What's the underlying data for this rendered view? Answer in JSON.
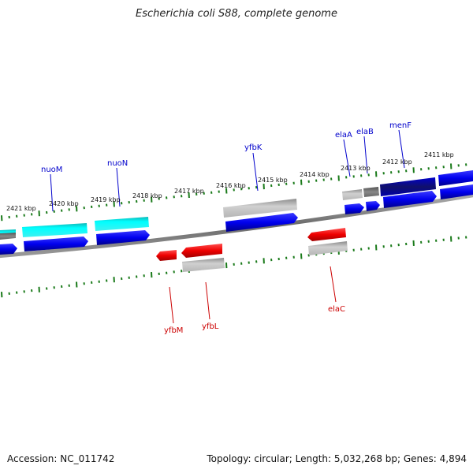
{
  "title": "Escherichia coli S88, complete genome",
  "footer": {
    "accession": "Accession: NC_011742",
    "summary": "Topology: circular; Length: 5,032,268 bp; Genes: 4,894"
  },
  "colors": {
    "forward_gene": "#0000ee",
    "reverse_gene": "#ee0000",
    "cyan_feature": "#00e5e5",
    "gray_feature": "#a8a8a8",
    "tick": "#1a7a1a",
    "backbone": "#888888"
  },
  "kbp_labels": [
    "2421 kbp",
    "2420 kbp",
    "2419 kbp",
    "2418 kbp",
    "2417 kbp",
    "2416 kbp",
    "2415 kbp",
    "2414 kbp",
    "2413 kbp",
    "2412 kbp",
    "2411 kbp"
  ],
  "gene_labels_forward": [
    "nuoM",
    "nuoN",
    "yfbK",
    "elaA",
    "elaB",
    "menF"
  ],
  "gene_labels_reverse": [
    "yfbM",
    "yfbL",
    "elaC"
  ]
}
